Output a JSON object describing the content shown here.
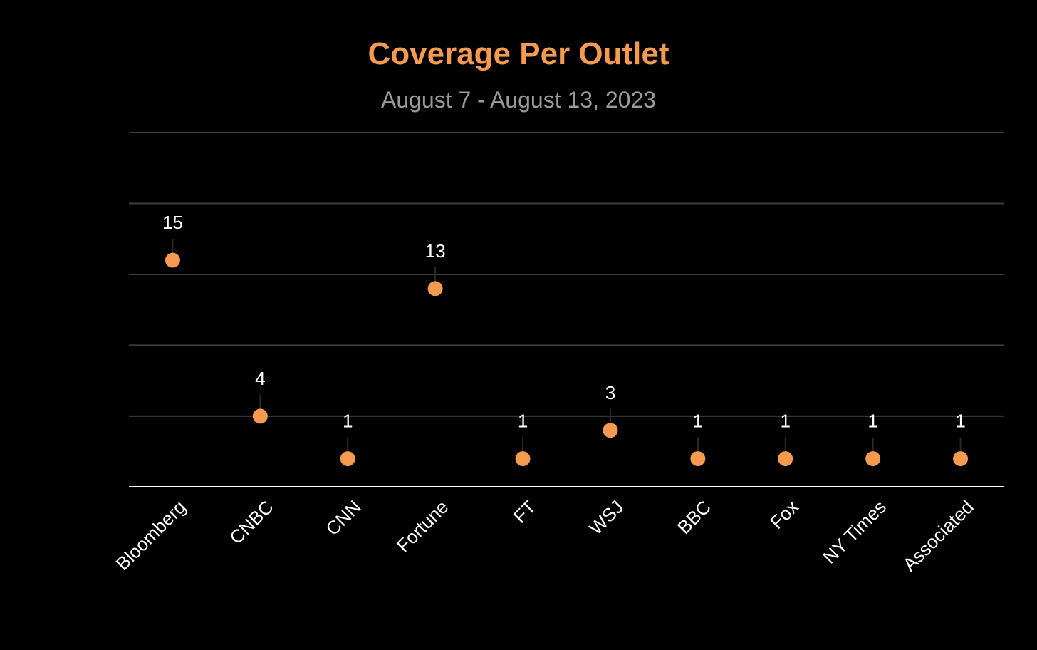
{
  "chart_data": {
    "type": "scatter",
    "title": "Coverage Per Outlet",
    "subtitle": "August 7 - August 13, 2023",
    "categories": [
      "Bloomberg",
      "CNBC",
      "CNN",
      "Fortune",
      "FT",
      "WSJ",
      "BBC",
      "Fox",
      "NY Times",
      "Associated"
    ],
    "values": [
      15,
      4,
      1,
      13,
      1,
      3,
      1,
      1,
      1,
      1
    ],
    "ylim": [
      -0.98,
      24.2
    ],
    "gridlines_y": [
      24,
      19,
      14,
      9,
      4
    ],
    "grid": true,
    "legend": "none",
    "xlabel": "",
    "ylabel": "",
    "colors": {
      "background": "#000000",
      "title": "#F59A4E",
      "subtitle": "#9A9A9A",
      "marker": "#F59A4E",
      "gridline": "#3C3C3C",
      "baseline": "#FFFFFF",
      "label": "#FFFFFF",
      "stem": "#2A2A2A"
    }
  }
}
